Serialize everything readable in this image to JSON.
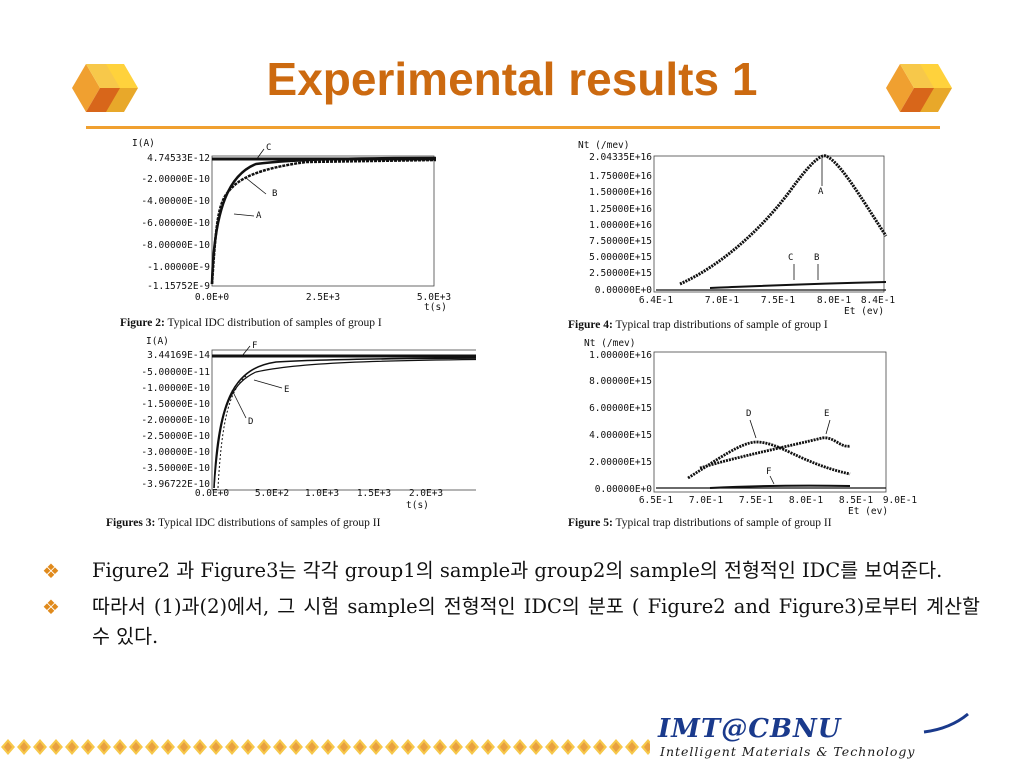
{
  "slide": {
    "title": "Experimental results 1",
    "colors": {
      "title": "#cc6a10",
      "rule": "#f0a030",
      "bullet": "#e08a1c",
      "logo": "#1a3a8c"
    }
  },
  "figures": [
    {
      "id": "fig2",
      "ylabel": "I(A)",
      "yticks": [
        "4.74533E-12",
        "-2.00000E-10",
        "-4.00000E-10",
        "-6.00000E-10",
        "-8.00000E-10",
        "-1.00000E-9",
        "-1.15752E-9"
      ],
      "xticks": [
        "0.0E+0",
        "2.5E+3",
        "5.0E+3"
      ],
      "xlabel": "t(s)",
      "curve_labels": [
        "C",
        "B",
        "A"
      ],
      "caption_bold": "Figure 2:",
      "caption": "Typical IDC distribution of samples of group I"
    },
    {
      "id": "fig3",
      "ylabel": "I(A)",
      "yticks": [
        "3.44169E-14",
        "-5.00000E-11",
        "-1.00000E-10",
        "-1.50000E-10",
        "-2.00000E-10",
        "-2.50000E-10",
        "-3.00000E-10",
        "-3.50000E-10",
        "-3.96722E-10"
      ],
      "xticks": [
        "0.0E+0",
        "5.0E+2",
        "1.0E+3",
        "1.5E+3",
        "2.0E+3"
      ],
      "xlabel": "t(s)",
      "curve_labels": [
        "F",
        "E",
        "D"
      ],
      "caption_bold": "Figures 3:",
      "caption": "Typical IDC distributions of samples of group II"
    },
    {
      "id": "fig4",
      "ylabel": "Nt (/mev)",
      "yticks": [
        "2.04335E+16",
        "1.75000E+16",
        "1.50000E+16",
        "1.25000E+16",
        "1.00000E+16",
        "7.50000E+15",
        "5.00000E+15",
        "2.50000E+15",
        "0.00000E+0"
      ],
      "xticks": [
        "6.4E-1",
        "7.0E-1",
        "7.5E-1",
        "8.0E-1",
        "8.4E-1"
      ],
      "xlabel": "Et (ev)",
      "curve_labels": [
        "A",
        "C",
        "B"
      ],
      "caption_bold": "Figure 4:",
      "caption": "Typical trap distributions of sample of group I"
    },
    {
      "id": "fig5",
      "ylabel": "Nt (/mev)",
      "yticks": [
        "1.00000E+16",
        "8.00000E+15",
        "6.00000E+15",
        "4.00000E+15",
        "2.00000E+15",
        "0.00000E+0"
      ],
      "xticks": [
        "6.5E-1",
        "7.0E-1",
        "7.5E-1",
        "8.0E-1",
        "8.5E-1",
        "9.0E-1"
      ],
      "xlabel": "Et (ev)",
      "curve_labels": [
        "D",
        "E",
        "F"
      ],
      "caption_bold": "Figure 5:",
      "caption": "Typical trap distributions of sample of group II"
    }
  ],
  "bullets": [
    {
      "mark": "❖",
      "text": "Figure2 과 Figure3는 각각 group1의 sample과 group2의 sample의 전형적인 IDC를 보여준다."
    },
    {
      "mark": "❖",
      "text": "따라서 (1)과(2)에서, 그 시험 sample의 전형적인 IDC의 분포 ( Figure2 and Figure3)로부터 계산할 수 있다."
    }
  ],
  "logo": {
    "main": "IMT@CBNU",
    "sub": "Intelligent Materials & Technology"
  }
}
